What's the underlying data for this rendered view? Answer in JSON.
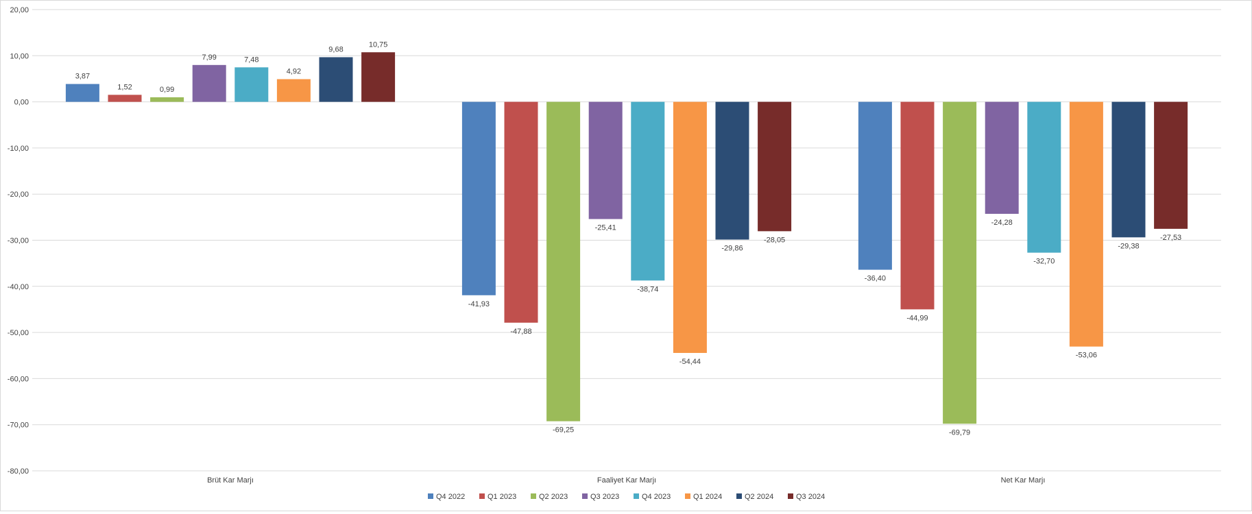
{
  "chart_data": {
    "type": "bar",
    "title": "",
    "xlabel": "",
    "ylabel": "",
    "categories": [
      "Brüt Kar Marjı",
      "Faaliyet Kar Marjı",
      "Net Kar Marjı"
    ],
    "series": [
      {
        "name": "Q4 2022",
        "color": "#4F81BD",
        "values": [
          3.87,
          -41.93,
          -36.4
        ],
        "labels": [
          "3,87",
          "-41,93",
          "-36,40"
        ]
      },
      {
        "name": "Q1 2023",
        "color": "#C0504D",
        "values": [
          1.52,
          -47.88,
          -44.99
        ],
        "labels": [
          "1,52",
          "-47,88",
          "-44,99"
        ]
      },
      {
        "name": "Q2 2023",
        "color": "#9BBB59",
        "values": [
          0.99,
          -69.25,
          -69.79
        ],
        "labels": [
          "0,99",
          "-69,25",
          "-69,79"
        ]
      },
      {
        "name": "Q3 2023",
        "color": "#8064A2",
        "values": [
          7.99,
          -25.41,
          -24.28
        ],
        "labels": [
          "7,99",
          "-25,41",
          "-24,28"
        ]
      },
      {
        "name": "Q4 2023",
        "color": "#4BACC6",
        "values": [
          7.48,
          -38.74,
          -32.7
        ],
        "labels": [
          "7,48",
          "-38,74",
          "-32,70"
        ]
      },
      {
        "name": "Q1 2024",
        "color": "#F79646",
        "values": [
          4.92,
          -54.44,
          -53.06
        ],
        "labels": [
          "4,92",
          "-54,44",
          "-53,06"
        ]
      },
      {
        "name": "Q2 2024",
        "color": "#2C4D75",
        "values": [
          9.68,
          -29.86,
          -29.38
        ],
        "labels": [
          "9,68",
          "-29,86",
          "-29,38"
        ]
      },
      {
        "name": "Q3 2024",
        "color": "#772C2A",
        "values": [
          10.75,
          -28.05,
          -27.53
        ],
        "labels": [
          "10,75",
          "-28,05",
          "-27,53"
        ]
      }
    ],
    "ylim": [
      -80,
      20
    ],
    "yticks": [
      20,
      10,
      0,
      -10,
      -20,
      -30,
      -40,
      -50,
      -60,
      -70,
      -80
    ],
    "ytick_labels": [
      "20,00",
      "10,00",
      "0,00",
      "-10,00",
      "-20,00",
      "-30,00",
      "-40,00",
      "-50,00",
      "-60,00",
      "-70,00",
      "-80,00"
    ],
    "grid": true,
    "legend_position": "bottom-center",
    "gridline_color": "#d9d9d9"
  }
}
